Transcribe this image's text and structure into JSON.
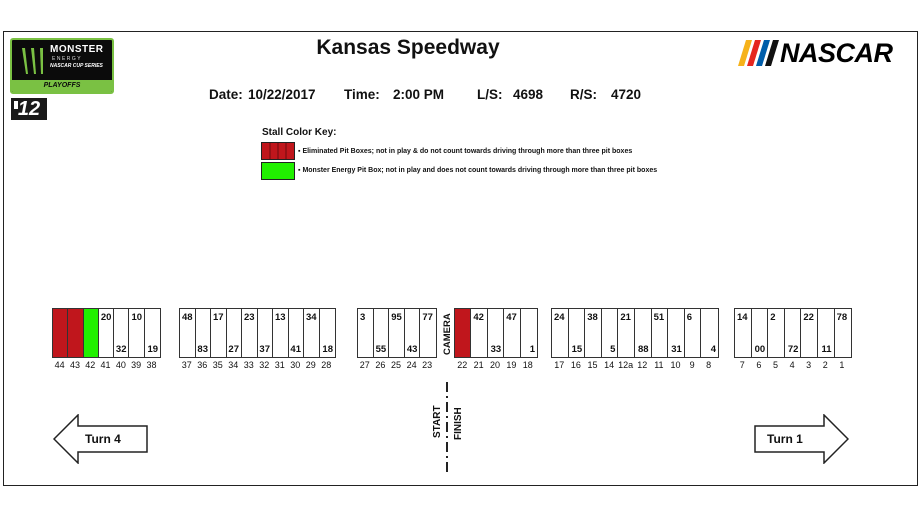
{
  "title": "Kansas Speedway",
  "info": {
    "date_label": "Date:",
    "date_value": "10/22/2017",
    "time_label": "Time:",
    "time_value": "2:00 PM",
    "ls_label": "L/S:",
    "ls_value": "4698",
    "rs_label": "R/S:",
    "rs_value": "4720"
  },
  "logos": {
    "monster": "MONSTER",
    "monster_sub": "ENERGY",
    "cup_series": "NASCAR CUP SERIES",
    "playoffs": "PLAYOFFS",
    "round": "12",
    "nascar": "NASCAR"
  },
  "color_key": {
    "title": "Stall Color Key:",
    "eliminated_text": "Eliminated Pit Boxes; not in play & do not count towards driving through more than three pit boxes",
    "monster_text": "Monster Energy Pit Box; not in play and does not count towards driving through more than three pit boxes",
    "eliminated_color": "#c0161c",
    "monster_color": "#21f000"
  },
  "pit_groups": [
    {
      "stalls": [
        {
          "num": "44",
          "top": "",
          "bottom": "",
          "color": "#c0161c"
        },
        {
          "num": "43",
          "top": "",
          "bottom": "",
          "color": "#c0161c"
        },
        {
          "num": "42",
          "top": "",
          "bottom": "",
          "color": "#21f000"
        },
        {
          "num": "41",
          "top": "20",
          "bottom": "",
          "color": ""
        },
        {
          "num": "40",
          "top": "",
          "bottom": "32",
          "color": ""
        },
        {
          "num": "39",
          "top": "10",
          "bottom": "",
          "color": ""
        },
        {
          "num": "38",
          "top": "",
          "bottom": "19",
          "color": ""
        }
      ]
    },
    {
      "stalls": [
        {
          "num": "37",
          "top": "48",
          "bottom": "",
          "color": ""
        },
        {
          "num": "36",
          "top": "",
          "bottom": "83",
          "color": ""
        },
        {
          "num": "35",
          "top": "17",
          "bottom": "",
          "color": ""
        },
        {
          "num": "34",
          "top": "",
          "bottom": "27",
          "color": ""
        },
        {
          "num": "33",
          "top": "23",
          "bottom": "",
          "color": ""
        },
        {
          "num": "32",
          "top": "",
          "bottom": "37",
          "color": ""
        },
        {
          "num": "31",
          "top": "13",
          "bottom": "",
          "color": ""
        },
        {
          "num": "30",
          "top": "",
          "bottom": "41",
          "color": ""
        },
        {
          "num": "29",
          "top": "34",
          "bottom": "",
          "color": ""
        },
        {
          "num": "28",
          "top": "",
          "bottom": "18",
          "color": ""
        }
      ]
    },
    {
      "stalls": [
        {
          "num": "27",
          "top": "3",
          "bottom": "",
          "color": ""
        },
        {
          "num": "26",
          "top": "",
          "bottom": "55",
          "color": ""
        },
        {
          "num": "25",
          "top": "95",
          "bottom": "",
          "color": ""
        },
        {
          "num": "24",
          "top": "",
          "bottom": "43",
          "color": ""
        },
        {
          "num": "23",
          "top": "77",
          "bottom": "",
          "color": ""
        }
      ]
    },
    {
      "camera": "CAMERA",
      "stalls": [
        {
          "num": "22",
          "top": "",
          "bottom": "",
          "color": "#c0161c"
        },
        {
          "num": "21",
          "top": "42",
          "bottom": "",
          "color": ""
        },
        {
          "num": "20",
          "top": "",
          "bottom": "33",
          "color": ""
        },
        {
          "num": "19",
          "top": "47",
          "bottom": "",
          "color": ""
        },
        {
          "num": "18",
          "top": "",
          "bottom": "1",
          "color": ""
        }
      ]
    },
    {
      "stalls": [
        {
          "num": "17",
          "top": "24",
          "bottom": "",
          "color": ""
        },
        {
          "num": "16",
          "top": "",
          "bottom": "15",
          "color": ""
        },
        {
          "num": "15",
          "top": "38",
          "bottom": "",
          "color": ""
        },
        {
          "num": "14",
          "top": "",
          "bottom": "5",
          "color": ""
        },
        {
          "num": "12a",
          "top": "21",
          "bottom": "",
          "color": ""
        },
        {
          "num": "12",
          "top": "",
          "bottom": "88",
          "color": ""
        },
        {
          "num": "11",
          "top": "51",
          "bottom": "",
          "color": ""
        },
        {
          "num": "10",
          "top": "",
          "bottom": "31",
          "color": ""
        },
        {
          "num": "9",
          "top": "6",
          "bottom": "",
          "color": ""
        },
        {
          "num": "8",
          "top": "",
          "bottom": "4",
          "color": ""
        }
      ]
    },
    {
      "stalls": [
        {
          "num": "7",
          "top": "14",
          "bottom": "",
          "color": ""
        },
        {
          "num": "6",
          "top": "",
          "bottom": "00",
          "color": ""
        },
        {
          "num": "5",
          "top": "2",
          "bottom": "",
          "color": ""
        },
        {
          "num": "4",
          "top": "",
          "bottom": "72",
          "color": ""
        },
        {
          "num": "3",
          "top": "22",
          "bottom": "",
          "color": ""
        },
        {
          "num": "2",
          "top": "",
          "bottom": "11",
          "color": ""
        },
        {
          "num": "1",
          "top": "78",
          "bottom": "",
          "color": ""
        }
      ]
    }
  ],
  "start_finish": {
    "start": "START",
    "finish": "FINISH"
  },
  "turn_left": "Turn 4",
  "turn_right": "Turn 1"
}
